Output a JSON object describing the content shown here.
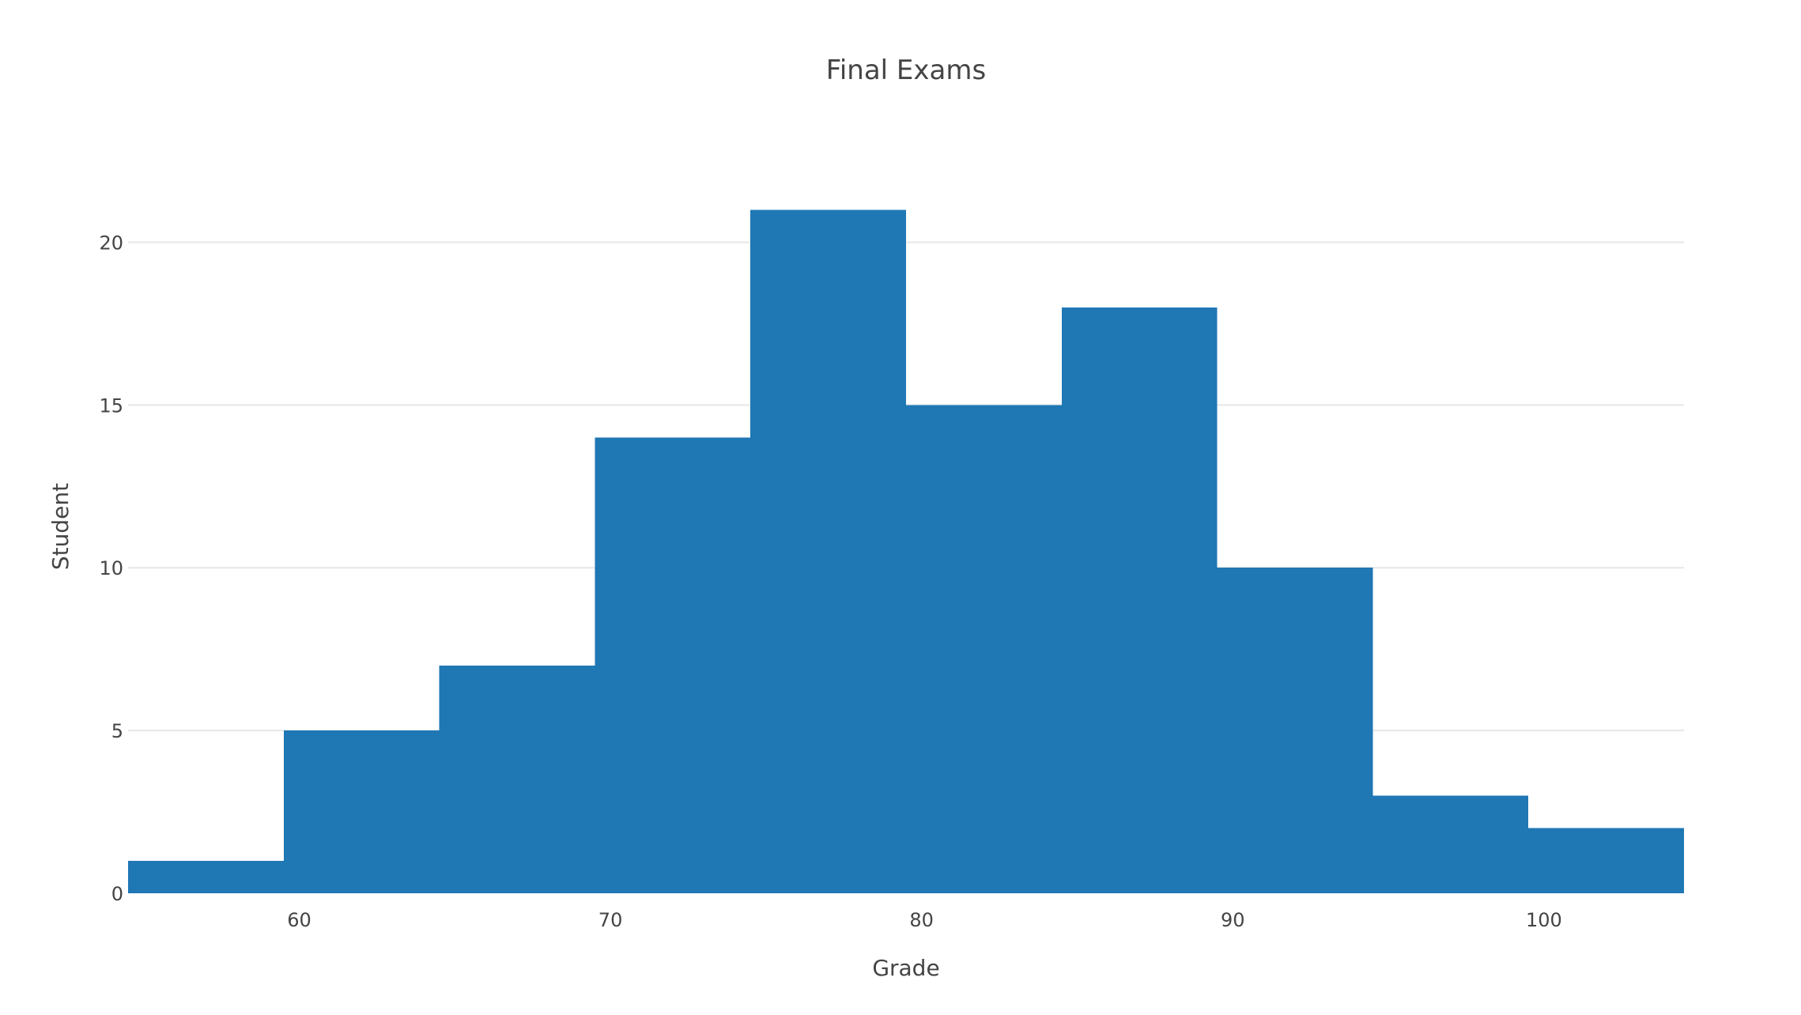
{
  "chart_data": {
    "type": "bar",
    "title": "Final Exams",
    "xlabel": "Grade",
    "ylabel": "Student",
    "bin_edges": [
      54.5,
      59.5,
      64.5,
      69.5,
      74.5,
      79.5,
      84.5,
      89.5,
      94.5,
      99.5,
      104.5
    ],
    "values": [
      1,
      5,
      7,
      14,
      21,
      15,
      18,
      10,
      3,
      2
    ],
    "xlim": [
      54.5,
      104.5
    ],
    "ylim": [
      0,
      22.1
    ],
    "x_ticks": [
      60,
      70,
      80,
      90,
      100
    ],
    "x_tick_labels": [
      "60",
      "70",
      "80",
      "90",
      "100"
    ],
    "y_ticks": [
      0,
      5,
      10,
      15,
      20
    ],
    "y_tick_labels": [
      "0",
      "5",
      "10",
      "15",
      "20"
    ],
    "grid": true,
    "bar_color": "#1f77b4",
    "grid_color": "#e6e6e6",
    "text_color": "#444444"
  }
}
